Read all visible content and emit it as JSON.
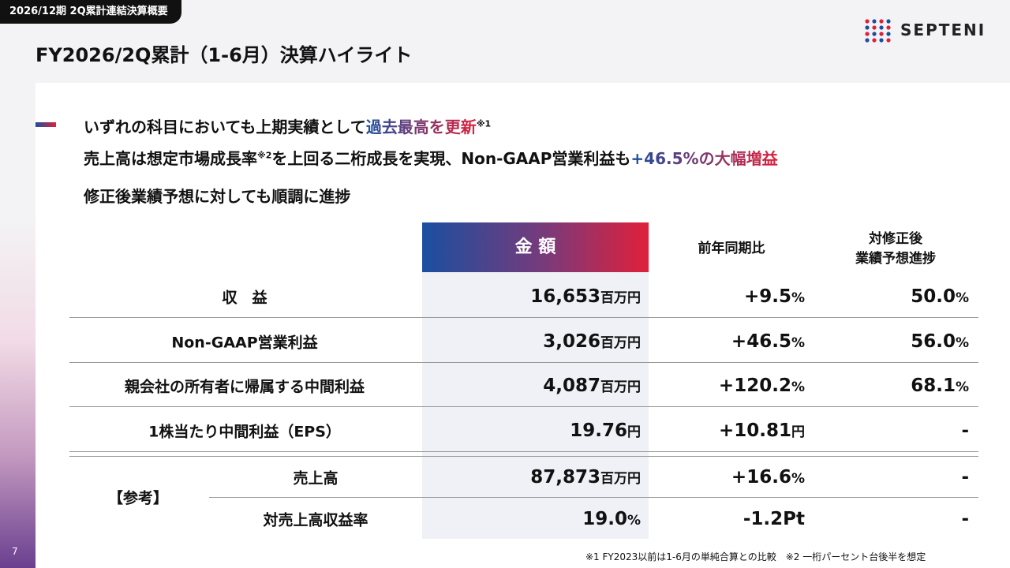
{
  "header": {
    "tag": "2026/12期 2Q累計連結決算概要",
    "title": "FY2026/2Q累計（1-6月）決算ハイライト",
    "logo": "SEPTENI"
  },
  "bullets": [
    [
      {
        "text": "いずれの科目においても上期実績として",
        "kind": "plain"
      },
      {
        "text": "過去最高を更新",
        "kind": "highlight"
      },
      {
        "text": "※1",
        "kind": "note"
      }
    ],
    [
      {
        "text": "売上高は想定市場成長率",
        "kind": "plain"
      },
      {
        "text": "※2",
        "kind": "note"
      },
      {
        "text": "を上回る二桁成長を実現、Non-GAAP営業利益も",
        "kind": "plain"
      },
      {
        "text": "+46.5%の大幅増益",
        "kind": "highlight"
      }
    ],
    [
      {
        "text": "修正後業績予想に対しても順調に進捗",
        "kind": "plain"
      }
    ]
  ],
  "table": {
    "headers": {
      "amount": "金 額",
      "yoy": "前年同期比",
      "progress": [
        "対修正後",
        "業績予想進捗"
      ]
    },
    "rows": [
      {
        "label": "収　益",
        "amount": {
          "num": "16,653",
          "unit": "百万円"
        },
        "yoy": {
          "num": "+9.5",
          "unit": "%"
        },
        "progress": {
          "num": "50.0",
          "unit": "%"
        }
      },
      {
        "label": "Non-GAAP営業利益",
        "amount": {
          "num": "3,026",
          "unit": "百万円"
        },
        "yoy": {
          "num": "+46.5",
          "unit": "%"
        },
        "progress": {
          "num": "56.0",
          "unit": "%"
        }
      },
      {
        "label": "親会社の所有者に帰属する中間利益",
        "amount": {
          "num": "4,087",
          "unit": "百万円"
        },
        "yoy": {
          "num": "+120.2",
          "unit": "%"
        },
        "progress": {
          "num": "68.1",
          "unit": "%"
        }
      },
      {
        "label": "1株当たり中間利益（EPS）",
        "amount": {
          "num": "19.76",
          "unit": "円"
        },
        "yoy": {
          "num": "+10.81",
          "unit": "円"
        },
        "progress": {
          "num": "-"
        }
      }
    ]
  },
  "reference": {
    "label": "【参考】",
    "rows": [
      {
        "label": "売上高",
        "amount": {
          "num": "87,873",
          "unit": "百万円"
        },
        "yoy": {
          "num": "+16.6",
          "unit": "%"
        },
        "progress": {
          "num": "-"
        }
      },
      {
        "label": "対売上高収益率",
        "amount": {
          "num": "19.0",
          "unit": "%"
        },
        "yoy": {
          "num": "-1.2Pt"
        },
        "progress": {
          "num": "-"
        }
      }
    ]
  },
  "footnote": "※1  FY2023以前は1-6月の単純合算との比較　※2 一桁パーセント台後半を想定",
  "page_number": "7"
}
